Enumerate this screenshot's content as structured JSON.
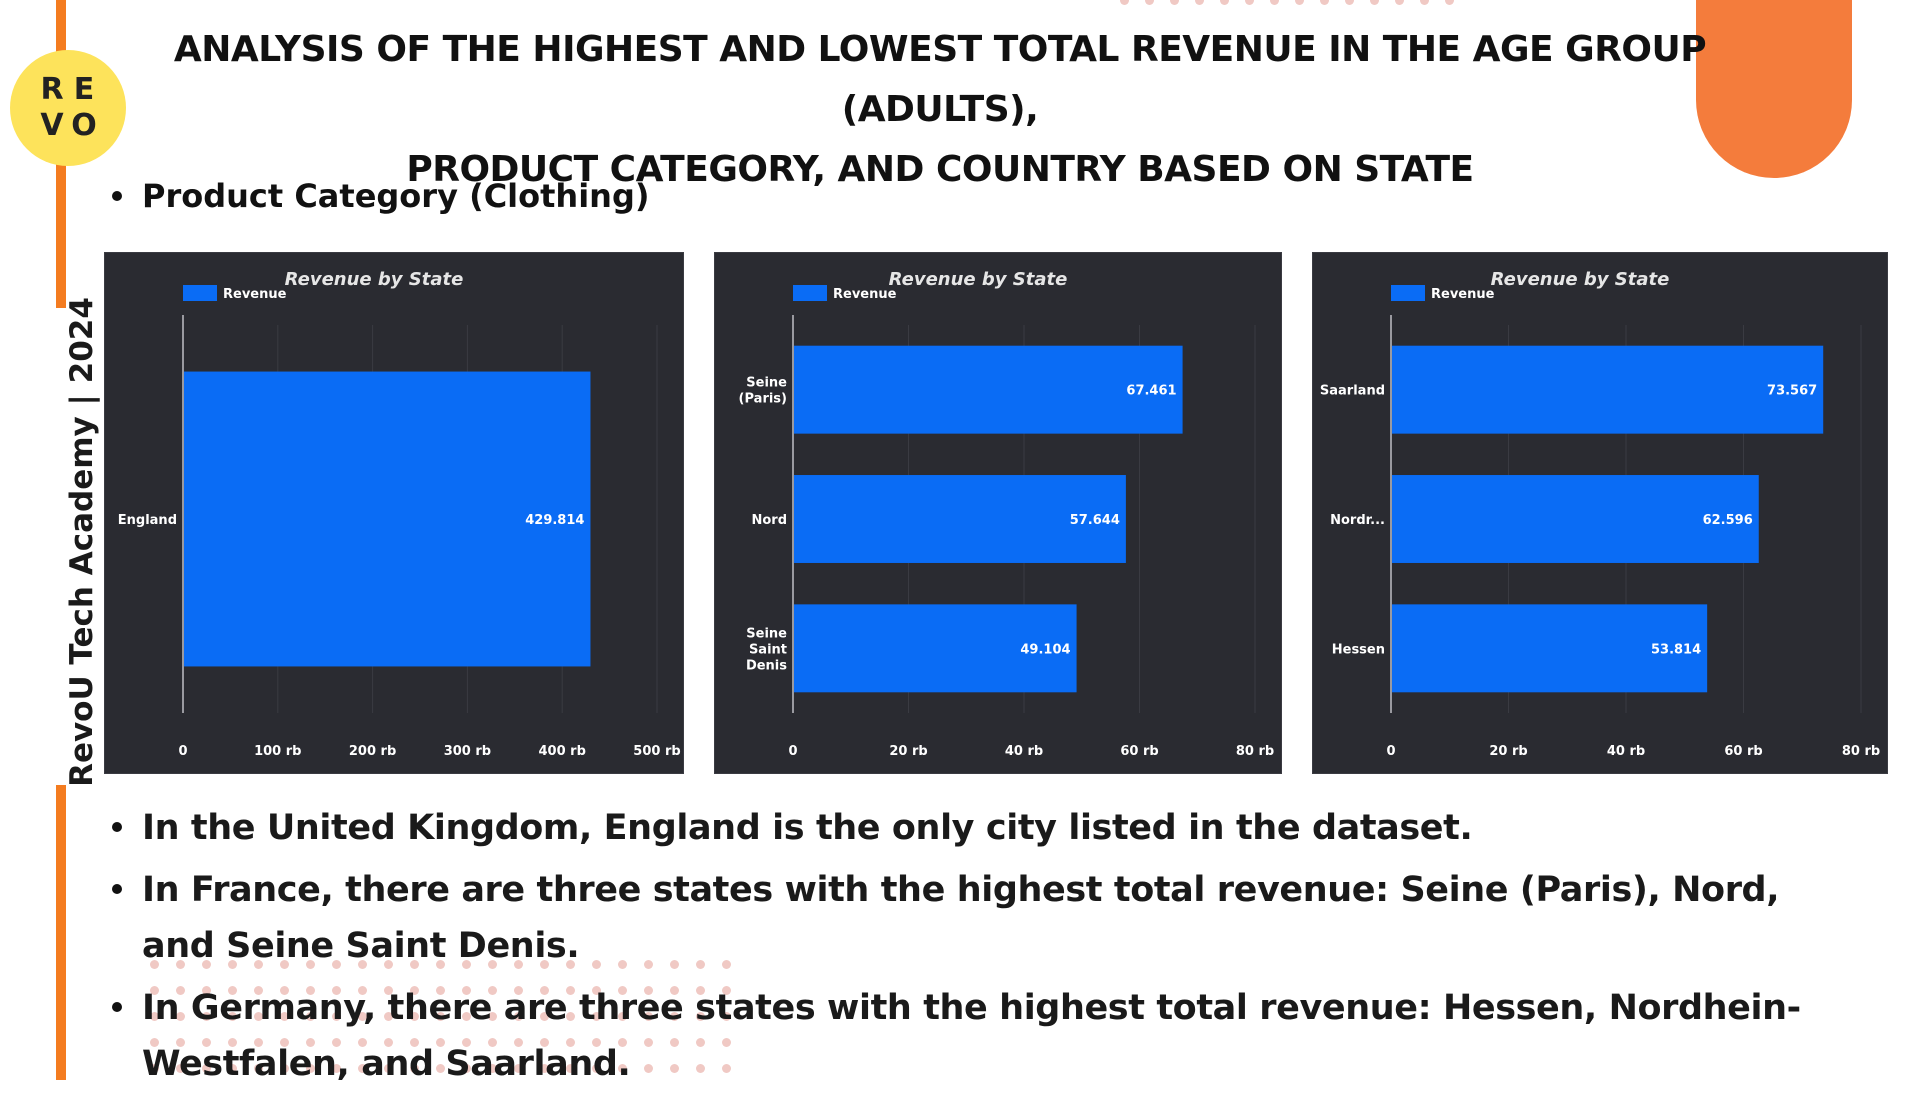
{
  "brand": {
    "logo_letters": [
      "R",
      "E",
      "V",
      "O"
    ],
    "vertical_text": "RevoU Tech Academy | 2024",
    "accent_color": "#f47c20"
  },
  "page": {
    "title_line1": "ANALYSIS OF THE HIGHEST AND LOWEST TOTAL REVENUE IN THE AGE GROUP (ADULTS),",
    "title_line2": "PRODUCT CATEGORY, AND COUNTRY BASED ON STATE",
    "subtitle": "Product Category (Clothing)"
  },
  "chart_data": [
    {
      "type": "bar",
      "orientation": "horizontal",
      "title": "Revenue by State",
      "legend": "Revenue",
      "categories": [
        "England"
      ],
      "values": [
        429814
      ],
      "value_labels": [
        "429.814"
      ],
      "xlim": [
        0,
        500000
      ],
      "xticks": [
        "0",
        "100 rb",
        "200 rb",
        "300 rb",
        "400 rb",
        "500 rb"
      ],
      "bar_color": "#0a6cf5"
    },
    {
      "type": "bar",
      "orientation": "horizontal",
      "title": "Revenue by State",
      "legend": "Revenue",
      "categories": [
        "Seine (Paris)",
        "Nord",
        "Seine Saint Denis"
      ],
      "values": [
        67461,
        57644,
        49104
      ],
      "value_labels": [
        "67.461",
        "57.644",
        "49.104"
      ],
      "xlim": [
        0,
        80000
      ],
      "xticks": [
        "0",
        "20 rb",
        "40 rb",
        "60 rb",
        "80 rb"
      ],
      "bar_color": "#0a6cf5"
    },
    {
      "type": "bar",
      "orientation": "horizontal",
      "title": "Revenue by State",
      "legend": "Revenue",
      "categories": [
        "Saarland",
        "Nordr...",
        "Hessen"
      ],
      "values": [
        73567,
        62596,
        53814
      ],
      "value_labels": [
        "73.567",
        "62.596",
        "53.814"
      ],
      "xlim": [
        0,
        80000
      ],
      "xticks": [
        "0",
        "20 rb",
        "40 rb",
        "60 rb",
        "80 rb"
      ],
      "bar_color": "#0a6cf5"
    }
  ],
  "findings": [
    "In the United Kingdom, England is the only city listed in the dataset.",
    "In France, there are three states with the highest total revenue: Seine (Paris), Nord, and Seine Saint Denis.",
    "In Germany, there are three states with the highest total revenue: Hessen, Nordhein-Westfalen, and Saarland."
  ]
}
